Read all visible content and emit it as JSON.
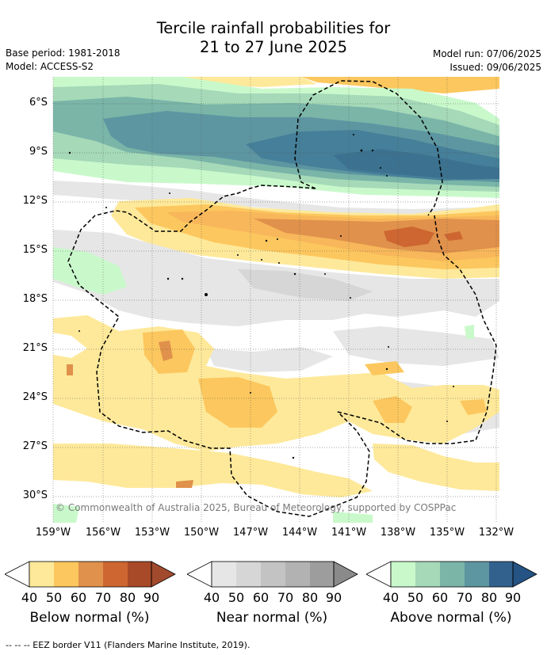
{
  "title": {
    "line1": "Tercile rainfall probabilities for",
    "line2": "21 to 27 June 2025"
  },
  "meta_left": {
    "base_period": "Base period: 1981-2018",
    "model": "Model: ACCESS-S2"
  },
  "meta_right": {
    "model_run": "Model run: 07/06/2025",
    "issued": "Issued: 09/06/2025"
  },
  "latitude_labels": [
    "6°S",
    "9°S",
    "12°S",
    "15°S",
    "18°S",
    "21°S",
    "24°S",
    "27°S",
    "30°S"
  ],
  "longitude_labels": [
    "159°W",
    "156°W",
    "153°W",
    "150°W",
    "147°W",
    "144°W",
    "141°W",
    "138°W",
    "135°W",
    "132°W"
  ],
  "credit": "© Commonwealth of Australia 2025, Bureau of Meteorology, supported by COSPPac",
  "colorbars": [
    {
      "label": "Below normal (%)",
      "ticks": [
        "40",
        "50",
        "60",
        "70",
        "80",
        "90"
      ],
      "colors": [
        "#fee99a",
        "#fcc75e",
        "#e0914b",
        "#cd6631",
        "#a84927",
        "#a14a2d"
      ]
    },
    {
      "label": "Near normal (%)",
      "ticks": [
        "40",
        "50",
        "60",
        "70",
        "80",
        "90"
      ],
      "colors": [
        "#e6e6e6",
        "#d6d6d6",
        "#c3c3c3",
        "#b2b2b2",
        "#9d9d9d",
        "#8a8a8a"
      ]
    },
    {
      "label": "Above normal (%)",
      "ticks": [
        "40",
        "50",
        "60",
        "70",
        "80",
        "90"
      ],
      "colors": [
        "#c9f9cb",
        "#a5d9b8",
        "#7ab5a8",
        "#5d96a1",
        "#32618e",
        "#245384"
      ]
    }
  ],
  "footer": "--  --  -- EEZ border V11 (Flanders Marine Institute, 2019)."
}
